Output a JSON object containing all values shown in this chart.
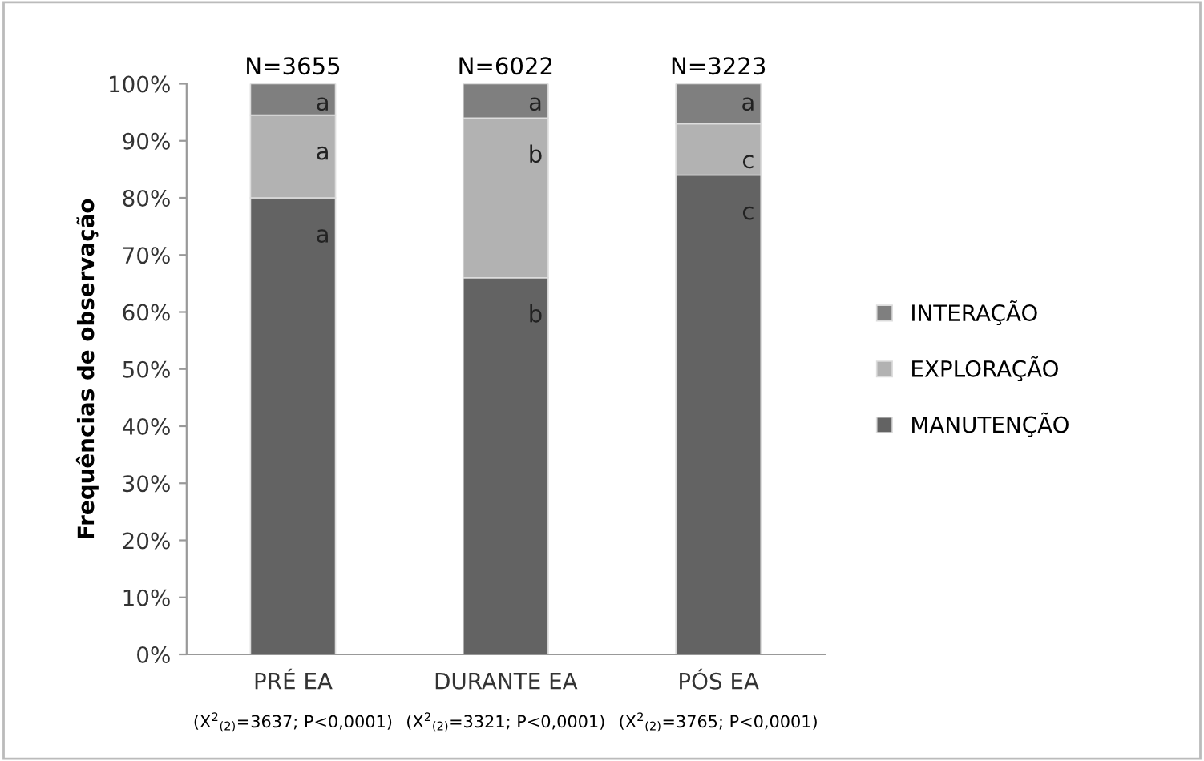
{
  "chart_data": {
    "type": "bar",
    "stacked": true,
    "ylabel": "Frequências de observação",
    "categories": [
      "PRÉ EA",
      "DURANTE EA",
      "PÓS EA"
    ],
    "series": [
      {
        "name": "MANUTENÇÃO",
        "color": "#636363",
        "values": [
          80,
          66,
          84
        ]
      },
      {
        "name": "EXPLORAÇÃO",
        "color": "#b2b2b2",
        "values": [
          14.5,
          28,
          9
        ]
      },
      {
        "name": "INTERAÇÃO",
        "color": "#7f7f7f",
        "values": [
          5.5,
          6,
          7
        ]
      }
    ],
    "ylim": [
      0,
      100
    ],
    "yticks": [
      {
        "value": 0,
        "label": "0%"
      },
      {
        "value": 10,
        "label": "10%"
      },
      {
        "value": 20,
        "label": "20%"
      },
      {
        "value": 30,
        "label": "30%"
      },
      {
        "value": 40,
        "label": "40%"
      },
      {
        "value": 50,
        "label": "50%"
      },
      {
        "value": 60,
        "label": "60%"
      },
      {
        "value": 70,
        "label": "70%"
      },
      {
        "value": 80,
        "label": "80%"
      },
      {
        "value": 90,
        "label": "90%"
      },
      {
        "value": 100,
        "label": "100%"
      }
    ],
    "grid": false,
    "legend": "right",
    "annotations": [
      {
        "text": "N=3655",
        "x": "PRÉ EA",
        "y": 100
      },
      {
        "text": "N=6022",
        "x": "DURANTE EA",
        "y": 100
      },
      {
        "text": "N=3223",
        "x": "PÓS EA",
        "y": 100
      },
      "a",
      "a",
      "a",
      "b",
      "b",
      "a",
      "c",
      "c",
      "a",
      "(X$^{2}$$_{(2)}$=3637; P<0,0001)",
      "(X$^{2}$$_{(2)}$=3321; P<0,0001)",
      "(X$^{2}$$_{(2)}$=3765; P<0,0001)"
    ]
  }
}
